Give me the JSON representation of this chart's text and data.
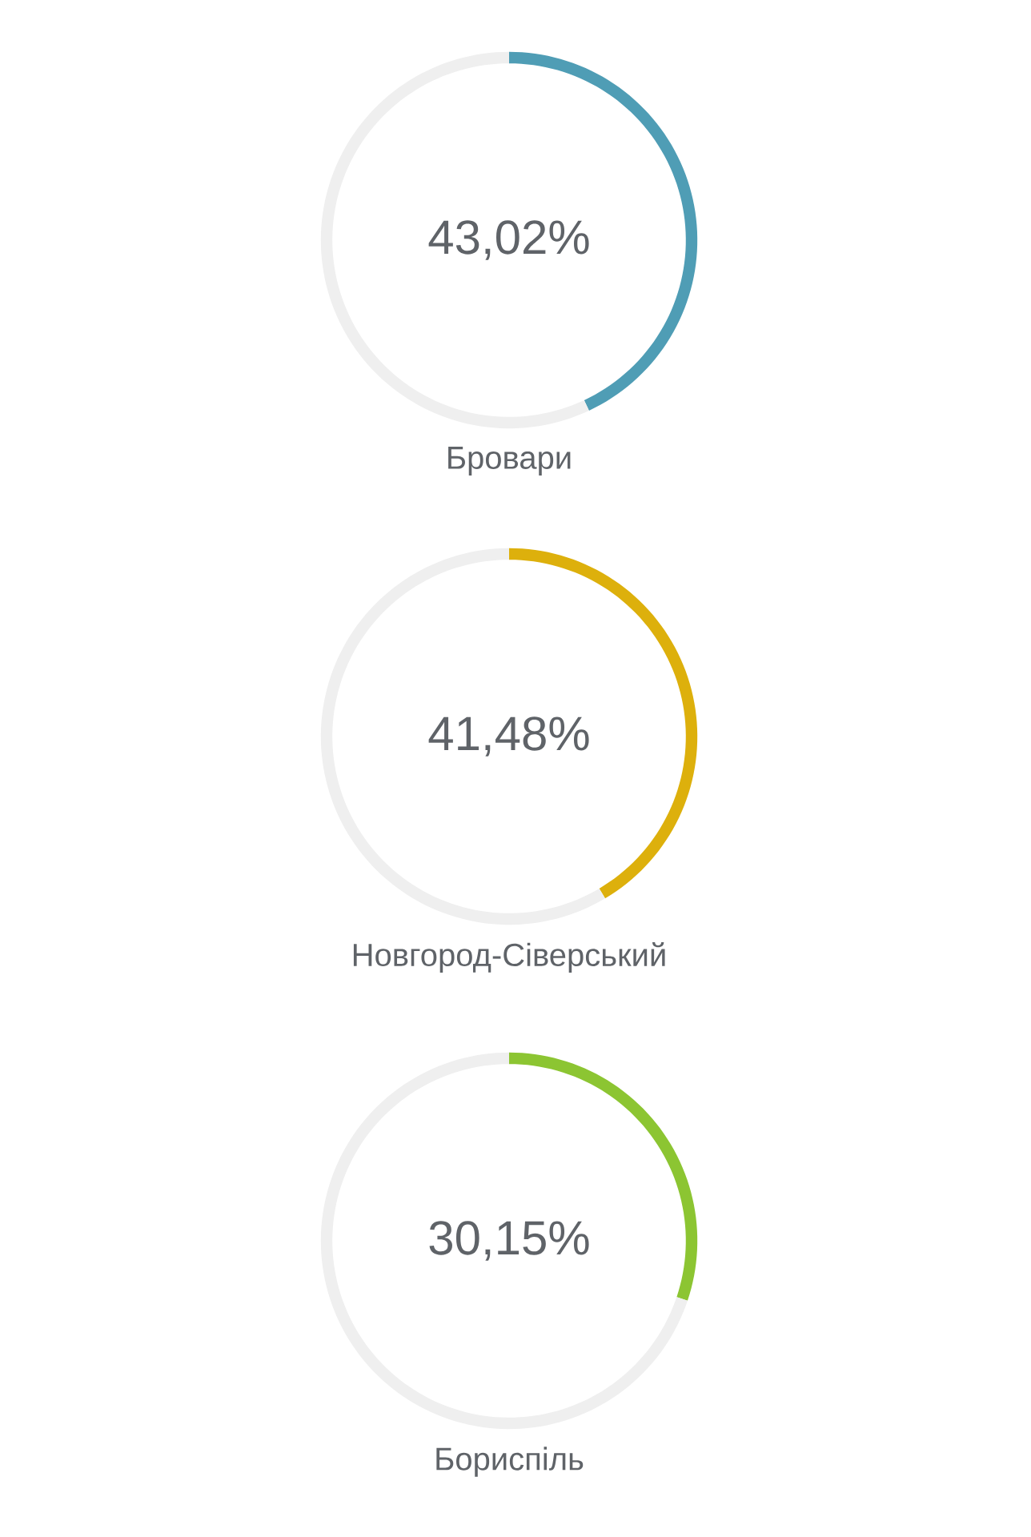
{
  "chart_data": [
    {
      "type": "donut",
      "title": "Бровари",
      "categories": [
        null,
        null
      ],
      "values": [
        43.02,
        56.98
      ],
      "colors": [
        "#4f9db5",
        "#efefef"
      ],
      "value_labels": [
        "43,02%",
        null
      ]
    },
    {
      "type": "donut",
      "title": "Новгород-Сіверський",
      "categories": [
        null,
        null
      ],
      "values": [
        41.48,
        58.52
      ],
      "colors": [
        "#ddb00c",
        "#efefef"
      ],
      "value_labels": [
        "41,48%",
        null
      ]
    },
    {
      "type": "donut",
      "title": "Бориспіль",
      "categories": [
        null,
        null
      ],
      "values": [
        30.15,
        69.85
      ],
      "colors": [
        "#8cc532",
        "#efefef"
      ],
      "value_labels": [
        "30,15%",
        null
      ]
    }
  ]
}
